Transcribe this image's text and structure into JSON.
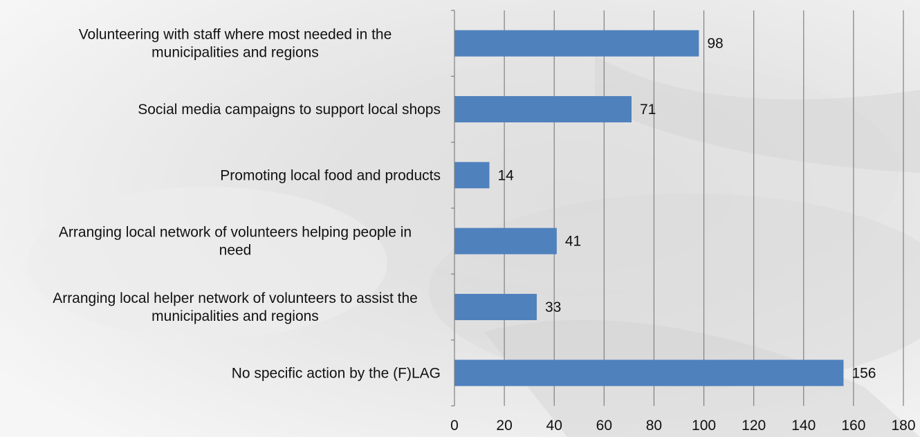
{
  "chart_data": {
    "type": "bar",
    "orientation": "horizontal",
    "categories": [
      "Volunteering with staff where most needed in the municipalities and regions",
      "Social media campaigns to support local shops",
      "Promoting local food and products",
      "Arranging local network of volunteers helping people in need",
      "Arranging local helper network of volunteers to assist the municipalities and regions",
      "No specific action by the (F)LAG"
    ],
    "values": [
      98,
      71,
      14,
      41,
      33,
      156
    ],
    "xlim": [
      0,
      180
    ],
    "x_ticks": [
      "0",
      "20",
      "40",
      "60",
      "80",
      "100",
      "120",
      "140",
      "160",
      "180"
    ],
    "grid": "vertical",
    "data_labels": true,
    "title": "",
    "xlabel": "",
    "ylabel": "",
    "bar_color": "#4f81bd",
    "label_lines": [
      [
        "Volunteering with staff where most needed in the",
        "municipalities and regions"
      ],
      [
        "Social media campaigns to support local shops"
      ],
      [
        "Promoting local food and products"
      ],
      [
        "Arranging local network of volunteers helping people in",
        "need"
      ],
      [
        "Arranging local helper network of volunteers to assist the",
        "municipalities and regions"
      ],
      [
        "No specific action by the (F)LAG"
      ]
    ]
  }
}
